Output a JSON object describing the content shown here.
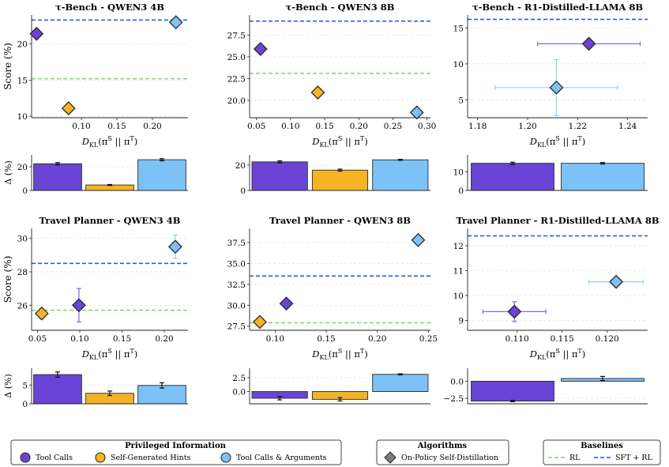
{
  "colors": {
    "tool_calls": "#6a44d6",
    "self_hints": "#f5b325",
    "tool_args": "#7cc2f7",
    "rl": "#7dd66b",
    "sft_rl": "#2a4fe0",
    "osd": "#7f7f7f",
    "edge": "#2a2a2a"
  },
  "axis_labels": {
    "score_ylabel": "Score (%)",
    "delta_ylabel": "Δ (%)",
    "dkl_base": "D",
    "dkl_sub": "KL",
    "dkl_paren_open": "(π",
    "dkl_sup_s": "S",
    "dkl_mid": " || π",
    "dkl_sup_t": "T",
    "dkl_paren_close": ")"
  },
  "chart_data": [
    {
      "type": "scatter",
      "title": "τ-Bench - QWEN3 4B",
      "xlim": [
        0.03,
        0.25
      ],
      "ylim": [
        9.8,
        24.0
      ],
      "xticks": [
        0.1,
        0.15,
        0.2
      ],
      "xtick_labels": [
        "0.10",
        "0.15",
        "0.20"
      ],
      "yticks": [
        10,
        15,
        20
      ],
      "ytick_labels": [
        "10",
        "15",
        "20"
      ],
      "show_ylabel": true,
      "baselines": {
        "rl": 15.2,
        "sft_rl": 23.3
      },
      "points": [
        {
          "series": "Tool Calls",
          "x": 0.037,
          "y": 21.4
        },
        {
          "series": "Self-Generated Hints",
          "x": 0.082,
          "y": 11.1
        },
        {
          "series": "Tool Calls & Arguments",
          "x": 0.233,
          "y": 23.0
        }
      ],
      "delta": {
        "ylim": [
          0,
          30
        ],
        "yticks": [
          0,
          20
        ],
        "ytick_labels": [
          "0",
          "20"
        ],
        "show_ylabel": true,
        "bars": [
          {
            "series": "Tool Calls",
            "value": 22.5,
            "err": 1.0
          },
          {
            "series": "Self-Generated Hints",
            "value": 4.6,
            "err": 0.4
          },
          {
            "series": "Tool Calls & Arguments",
            "value": 25.9,
            "err": 0.9
          }
        ]
      }
    },
    {
      "type": "scatter",
      "title": "τ-Bench - QWEN3 8B",
      "xlim": [
        0.04,
        0.305
      ],
      "ylim": [
        18.0,
        29.8
      ],
      "xticks": [
        0.05,
        0.1,
        0.15,
        0.2,
        0.25,
        0.3
      ],
      "xtick_labels": [
        "0.05",
        "0.10",
        "0.15",
        "0.20",
        "0.25",
        "0.30"
      ],
      "yticks": [
        20.0,
        22.5,
        25.0,
        27.5
      ],
      "ytick_labels": [
        "20.0",
        "22.5",
        "25.0",
        "27.5"
      ],
      "show_ylabel": false,
      "baselines": {
        "rl": 23.1,
        "sft_rl": 29.1
      },
      "points": [
        {
          "series": "Tool Calls",
          "x": 0.056,
          "y": 25.9
        },
        {
          "series": "Self-Generated Hints",
          "x": 0.14,
          "y": 20.9
        },
        {
          "series": "Tool Calls & Arguments",
          "x": 0.285,
          "y": 18.6
        }
      ],
      "delta": {
        "ylim": [
          0,
          28
        ],
        "yticks": [
          0,
          20
        ],
        "ytick_labels": [
          "0",
          "20"
        ],
        "show_ylabel": false,
        "bars": [
          {
            "series": "Tool Calls",
            "value": 22.5,
            "err": 0.8
          },
          {
            "series": "Self-Generated Hints",
            "value": 16.0,
            "err": 0.8
          },
          {
            "series": "Tool Calls & Arguments",
            "value": 24.1,
            "err": 0.4
          }
        ]
      }
    },
    {
      "type": "scatter",
      "title": "τ-Bench - R1-Distilled-LLAMA 8B",
      "xlim": [
        1.176,
        1.248
      ],
      "ylim": [
        2.5,
        16.8
      ],
      "xticks": [
        1.18,
        1.2,
        1.22,
        1.24
      ],
      "xtick_labels": [
        "1.18",
        "1.20",
        "1.22",
        "1.24"
      ],
      "yticks": [
        5,
        10,
        15
      ],
      "ytick_labels": [
        "5",
        "10",
        "15"
      ],
      "show_ylabel": false,
      "baselines": {
        "rl": null,
        "sft_rl": 16.2
      },
      "points": [
        {
          "series": "Tool Calls",
          "x": 1.2245,
          "y": 12.8,
          "xerr": 0.0205
        },
        {
          "series": "Tool Calls & Arguments",
          "x": 1.2115,
          "y": 6.7,
          "xerr": 0.0245,
          "yerr": 3.9
        }
      ],
      "delta": {
        "ylim": [
          0,
          19
        ],
        "yticks": [
          0,
          10
        ],
        "ytick_labels": [
          "0",
          "10"
        ],
        "show_ylabel": false,
        "bars": [
          {
            "series": "Tool Calls",
            "value": 14.5,
            "err": 0.6
          },
          {
            "series": "Tool Calls & Arguments",
            "value": 14.5,
            "err": 0.4
          }
        ]
      }
    },
    {
      "type": "scatter",
      "title": "Travel Planner - QWEN3 4B",
      "xlim": [
        0.043,
        0.228
      ],
      "ylim": [
        24.5,
        30.6
      ],
      "xticks": [
        0.05,
        0.1,
        0.15,
        0.2
      ],
      "xtick_labels": [
        "0.05",
        "0.10",
        "0.15",
        "0.20"
      ],
      "yticks": [
        26,
        28,
        30
      ],
      "ytick_labels": [
        "26",
        "28",
        "30"
      ],
      "show_ylabel": true,
      "baselines": {
        "rl": 25.7,
        "sft_rl": 28.5
      },
      "points": [
        {
          "series": "Tool Calls",
          "x": 0.099,
          "y": 26.0,
          "yerr": 1.0
        },
        {
          "series": "Self-Generated Hints",
          "x": 0.055,
          "y": 25.5
        },
        {
          "series": "Tool Calls & Arguments",
          "x": 0.213,
          "y": 29.5,
          "yerr": 0.7
        }
      ],
      "delta": {
        "ylim": [
          0,
          9.5
        ],
        "yticks": [
          0,
          5
        ],
        "ytick_labels": [
          "0",
          "5"
        ],
        "show_ylabel": true,
        "bars": [
          {
            "series": "Tool Calls",
            "value": 7.8,
            "err": 0.7
          },
          {
            "series": "Self-Generated Hints",
            "value": 2.8,
            "err": 0.6
          },
          {
            "series": "Tool Calls & Arguments",
            "value": 4.9,
            "err": 0.7
          }
        ]
      }
    },
    {
      "type": "scatter",
      "title": "Travel Planner - QWEN3 8B",
      "xlim": [
        0.075,
        0.252
      ],
      "ylim": [
        27.0,
        39.2
      ],
      "xticks": [
        0.1,
        0.15,
        0.2,
        0.25
      ],
      "xtick_labels": [
        "0.10",
        "0.15",
        "0.20",
        "0.25"
      ],
      "yticks": [
        27.5,
        30.0,
        32.5,
        35.0,
        37.5
      ],
      "ytick_labels": [
        "27.5",
        "30.0",
        "32.5",
        "35.0",
        "37.5"
      ],
      "show_ylabel": false,
      "baselines": {
        "rl": 27.9,
        "sft_rl": 33.5
      },
      "points": [
        {
          "series": "Tool Calls",
          "x": 0.111,
          "y": 30.2
        },
        {
          "series": "Self-Generated Hints",
          "x": 0.085,
          "y": 28.0
        },
        {
          "series": "Tool Calls & Arguments",
          "x": 0.24,
          "y": 37.8
        }
      ],
      "delta": {
        "ylim": [
          -2.2,
          4.2
        ],
        "yticks": [
          0.0,
          2.5
        ],
        "ytick_labels": [
          "0.0",
          "2.5"
        ],
        "show_ylabel": false,
        "bars": [
          {
            "series": "Tool Calls",
            "value": -1.2,
            "err": 0.3
          },
          {
            "series": "Self-Generated Hints",
            "value": -1.4,
            "err": 0.3
          },
          {
            "series": "Tool Calls & Arguments",
            "value": 3.1,
            "err": 0.1
          }
        ]
      }
    },
    {
      "type": "scatter",
      "title": "Travel Planner - R1-Distilled-LLAMA 8B",
      "xlim": [
        0.1045,
        0.1245
      ],
      "ylim": [
        8.6,
        12.7
      ],
      "xticks": [
        0.11,
        0.115,
        0.12
      ],
      "xtick_labels": [
        "0.110",
        "0.115",
        "0.120"
      ],
      "yticks": [
        9,
        10,
        11,
        12
      ],
      "ytick_labels": [
        "9",
        "10",
        "11",
        "12"
      ],
      "show_ylabel": false,
      "baselines": {
        "rl": null,
        "sft_rl": 12.4
      },
      "points": [
        {
          "series": "Tool Calls",
          "x": 0.1097,
          "y": 9.35,
          "xerr": 0.0035,
          "yerr": 0.4
        },
        {
          "series": "Tool Calls & Arguments",
          "x": 0.121,
          "y": 10.55,
          "xerr": 0.003
        }
      ],
      "delta": {
        "ylim": [
          -3.3,
          1.9
        ],
        "yticks": [
          -2.5,
          0.0
        ],
        "ytick_labels": [
          "−2.5",
          "0.0"
        ],
        "show_ylabel": false,
        "bars": [
          {
            "series": "Tool Calls",
            "value": -2.9,
            "err": 0.1
          },
          {
            "series": "Tool Calls & Arguments",
            "value": 0.4,
            "err": 0.3
          }
        ]
      }
    }
  ],
  "legend": {
    "privileged_title": "Privileged Information",
    "privileged_items": [
      "Tool Calls",
      "Self-Generated Hints",
      "Tool Calls & Arguments"
    ],
    "algorithms_title": "Algorithms",
    "algorithms_items": [
      "On-Policy Self-Distillation"
    ],
    "baselines_title": "Baselines",
    "baselines_items": [
      "RL",
      "SFT + RL"
    ]
  }
}
